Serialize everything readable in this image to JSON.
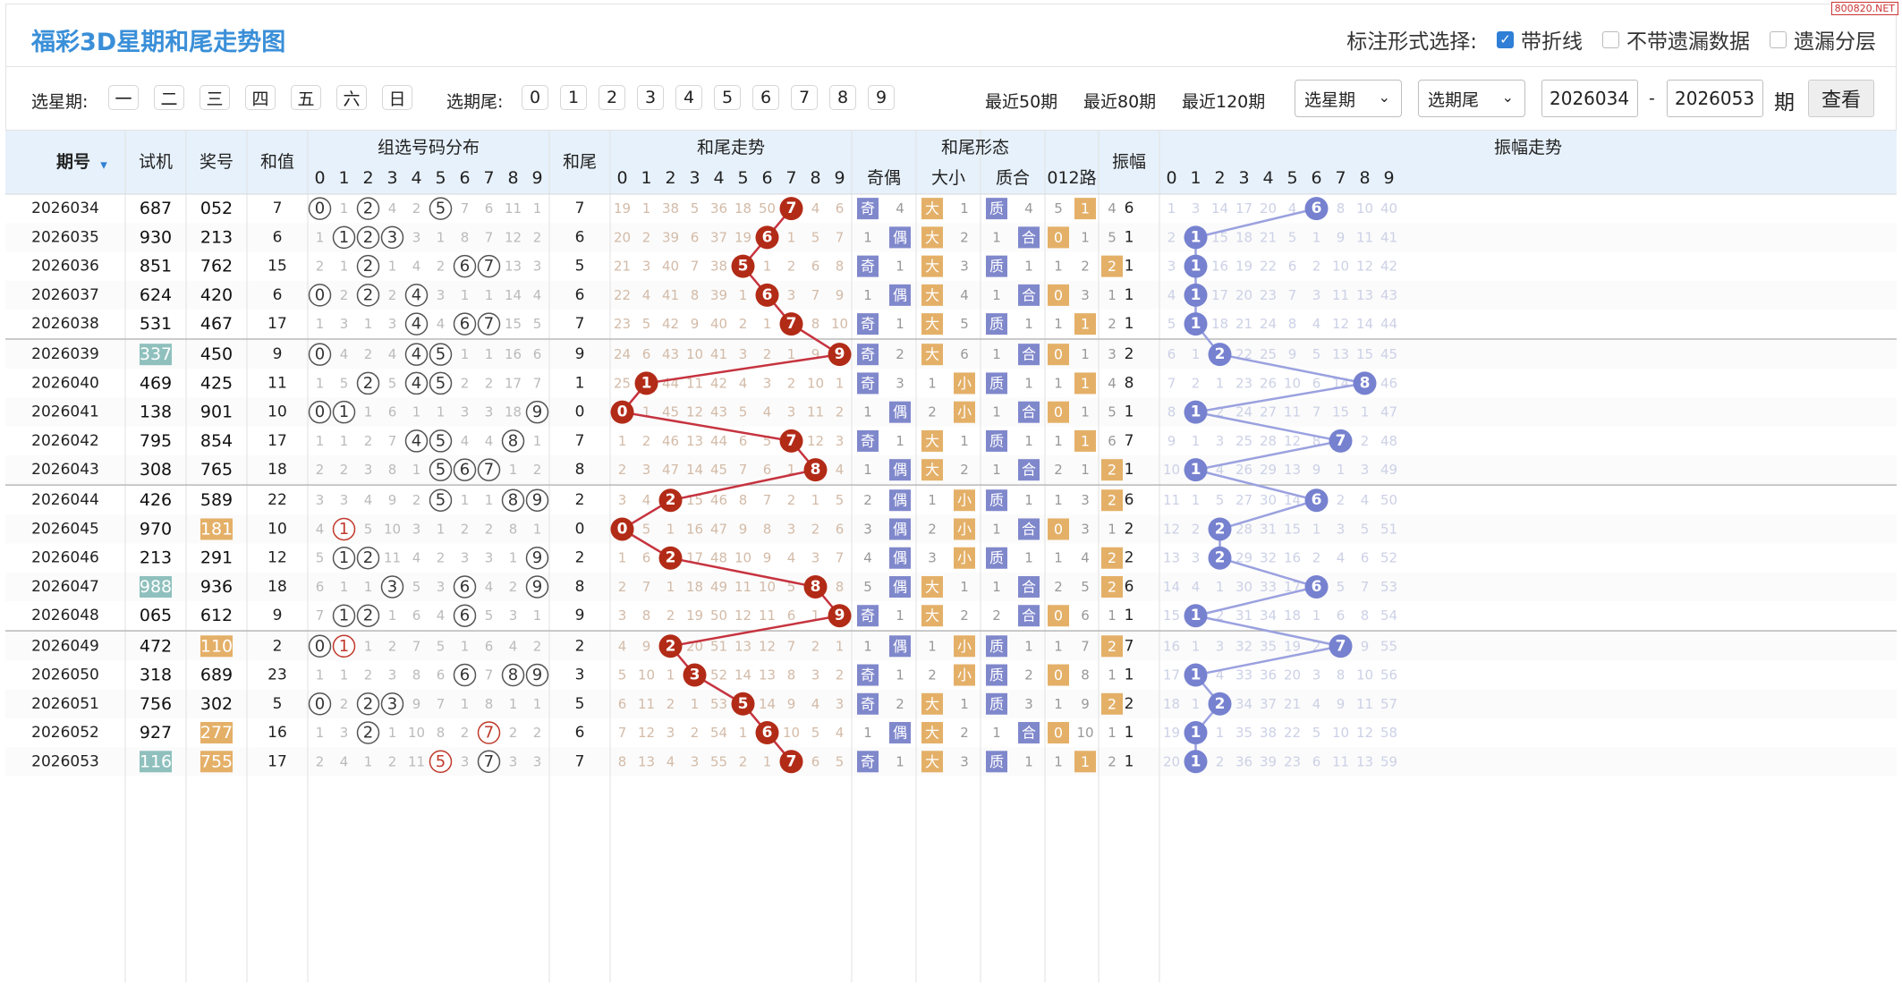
{
  "title": "福彩3D星期和尾走势图",
  "watermark": "800820.NET",
  "mark_options": {
    "label": "标注形式选择:",
    "items": [
      {
        "label": "带折线",
        "checked": true
      },
      {
        "label": "不带遗漏数据",
        "checked": false
      },
      {
        "label": "遗漏分层",
        "checked": false
      }
    ]
  },
  "filters": {
    "weekday_label": "选星期:",
    "weekdays": [
      "一",
      "二",
      "三",
      "四",
      "五",
      "六",
      "日"
    ],
    "tail_label": "选期尾:",
    "tails": [
      "0",
      "1",
      "2",
      "3",
      "4",
      "5",
      "6",
      "7",
      "8",
      "9"
    ],
    "recent": [
      "最近50期",
      "最近80期",
      "最近120期"
    ],
    "select_week": "选星期",
    "select_tail": "选期尾",
    "caret": "⌄",
    "from": "2026034",
    "sep": "-",
    "to": "2026053",
    "period_suffix": "期",
    "query_button": "查看"
  },
  "headers": {
    "issue": "期号",
    "arrow": "▾",
    "trial": "试机",
    "draw": "奖号",
    "sum": "和值",
    "dist": "组选号码分布",
    "tail": "和尾",
    "tail_trend": "和尾走势",
    "form": "和尾形态",
    "odd_even": "奇偶",
    "big_small": "大小",
    "prime_comp": "质合",
    "road": "012路",
    "amp": "振幅",
    "amp_trend": "振幅走势",
    "digits": [
      "0",
      "1",
      "2",
      "3",
      "4",
      "5",
      "6",
      "7",
      "8",
      "9"
    ]
  },
  "labels": {
    "odd": "奇",
    "even": "偶",
    "big": "大",
    "small": "小",
    "prime": "质",
    "comp": "合"
  },
  "colors": {
    "title": "#3a8fd8",
    "trend_ball": "#b22b17",
    "trend_line": "#c6333f",
    "amp_ball": "#7681cf",
    "amp_line": "#9aa1df",
    "odd_badge": "#8088cc",
    "big_badge": "#e4b068",
    "road_badge": "#e4b068",
    "trial_hl": "#8fc0bd",
    "draw_hl": "#e4b068",
    "header_bg": "#e7f1fb",
    "dist_circle": "#555",
    "dist_red": "#c0392b"
  },
  "rows": [
    {
      "issue": "2026034",
      "trial": "687",
      "draw": "052",
      "sum": "7",
      "tail": "7",
      "amp": "6",
      "dist": [
        "0",
        "1",
        "2",
        "4",
        "2",
        "5",
        "7",
        "6",
        "11",
        "1"
      ],
      "tt": [
        "19",
        "1",
        "38",
        "5",
        "36",
        "18",
        "50",
        "7",
        "4",
        "6"
      ],
      "oe": [
        "奇",
        "4"
      ],
      "bs": [
        "大",
        "1"
      ],
      "pc": [
        "质",
        "4"
      ],
      "road": [
        "5",
        "1",
        "4"
      ],
      "at": [
        "1",
        "3",
        "14",
        "17",
        "20",
        "4",
        "6",
        "8",
        "10",
        "40"
      ]
    },
    {
      "issue": "2026035",
      "trial": "930",
      "draw": "213",
      "sum": "6",
      "tail": "6",
      "amp": "1",
      "dist": [
        "1",
        "1",
        "2",
        "3",
        "3",
        "1",
        "8",
        "7",
        "12",
        "2"
      ],
      "tt": [
        "20",
        "2",
        "39",
        "6",
        "37",
        "19",
        "6",
        "1",
        "5",
        "7"
      ],
      "oe": [
        "1",
        "偶"
      ],
      "bs": [
        "大",
        "2"
      ],
      "pc": [
        "1",
        "合"
      ],
      "road": [
        "0",
        "1",
        "5"
      ],
      "at": [
        "2",
        "1",
        "15",
        "18",
        "21",
        "5",
        "1",
        "9",
        "11",
        "41"
      ]
    },
    {
      "issue": "2026036",
      "trial": "851",
      "draw": "762",
      "sum": "15",
      "tail": "5",
      "amp": "1",
      "dist": [
        "2",
        "1",
        "2",
        "1",
        "4",
        "2",
        "6",
        "7",
        "13",
        "3"
      ],
      "tt": [
        "21",
        "3",
        "40",
        "7",
        "38",
        "5",
        "1",
        "2",
        "6",
        "8"
      ],
      "oe": [
        "奇",
        "1"
      ],
      "bs": [
        "大",
        "3"
      ],
      "pc": [
        "质",
        "1"
      ],
      "road": [
        "1",
        "2",
        "2"
      ],
      "at": [
        "3",
        "1",
        "16",
        "19",
        "22",
        "6",
        "2",
        "10",
        "12",
        "42"
      ]
    },
    {
      "issue": "2026037",
      "trial": "624",
      "draw": "420",
      "sum": "6",
      "tail": "6",
      "amp": "1",
      "dist": [
        "0",
        "2",
        "2",
        "2",
        "4",
        "3",
        "1",
        "1",
        "14",
        "4"
      ],
      "tt": [
        "22",
        "4",
        "41",
        "8",
        "39",
        "1",
        "6",
        "3",
        "7",
        "9"
      ],
      "oe": [
        "1",
        "偶"
      ],
      "bs": [
        "大",
        "4"
      ],
      "pc": [
        "1",
        "合"
      ],
      "road": [
        "0",
        "3",
        "1"
      ],
      "at": [
        "4",
        "1",
        "17",
        "20",
        "23",
        "7",
        "3",
        "11",
        "13",
        "43"
      ]
    },
    {
      "issue": "2026038",
      "trial": "531",
      "draw": "467",
      "sum": "17",
      "tail": "7",
      "amp": "1",
      "dist": [
        "1",
        "3",
        "1",
        "3",
        "4",
        "4",
        "6",
        "7",
        "15",
        "5"
      ],
      "tt": [
        "23",
        "5",
        "42",
        "9",
        "40",
        "2",
        "1",
        "7",
        "8",
        "10"
      ],
      "oe": [
        "奇",
        "1"
      ],
      "bs": [
        "大",
        "5"
      ],
      "pc": [
        "质",
        "1"
      ],
      "road": [
        "1",
        "1",
        "2"
      ],
      "at": [
        "5",
        "1",
        "18",
        "21",
        "24",
        "8",
        "4",
        "12",
        "14",
        "44"
      ]
    },
    {
      "issue": "2026039",
      "trial": "337",
      "draw": "450",
      "sum": "9",
      "tail": "9",
      "amp": "2",
      "dist": [
        "0",
        "4",
        "2",
        "4",
        "4",
        "5",
        "1",
        "1",
        "16",
        "6"
      ],
      "tt": [
        "24",
        "6",
        "43",
        "10",
        "41",
        "3",
        "2",
        "1",
        "9",
        "9"
      ],
      "oe": [
        "奇",
        "2"
      ],
      "bs": [
        "大",
        "6"
      ],
      "pc": [
        "1",
        "合"
      ],
      "road": [
        "0",
        "1",
        "3"
      ],
      "at": [
        "6",
        "1",
        "2",
        "22",
        "25",
        "9",
        "5",
        "13",
        "15",
        "45"
      ]
    },
    {
      "issue": "2026040",
      "trial": "469",
      "draw": "425",
      "sum": "11",
      "tail": "1",
      "amp": "8",
      "dist": [
        "1",
        "5",
        "2",
        "5",
        "4",
        "5",
        "2",
        "2",
        "17",
        "7"
      ],
      "tt": [
        "25",
        "1",
        "44",
        "11",
        "42",
        "4",
        "3",
        "2",
        "10",
        "1"
      ],
      "oe": [
        "奇",
        "3"
      ],
      "bs": [
        "1",
        "小"
      ],
      "pc": [
        "质",
        "1"
      ],
      "road": [
        "1",
        "1",
        "4"
      ],
      "at": [
        "7",
        "2",
        "1",
        "23",
        "26",
        "10",
        "6",
        "14",
        "8",
        "46"
      ]
    },
    {
      "issue": "2026041",
      "trial": "138",
      "draw": "901",
      "sum": "10",
      "tail": "0",
      "amp": "1",
      "dist": [
        "0",
        "1",
        "1",
        "6",
        "1",
        "1",
        "3",
        "3",
        "18",
        "9"
      ],
      "tt": [
        "0",
        "1",
        "45",
        "12",
        "43",
        "5",
        "4",
        "3",
        "11",
        "2"
      ],
      "oe": [
        "1",
        "偶"
      ],
      "bs": [
        "2",
        "小"
      ],
      "pc": [
        "1",
        "合"
      ],
      "road": [
        "0",
        "1",
        "5"
      ],
      "at": [
        "8",
        "1",
        "2",
        "24",
        "27",
        "11",
        "7",
        "15",
        "1",
        "47"
      ]
    },
    {
      "issue": "2026042",
      "trial": "795",
      "draw": "854",
      "sum": "17",
      "tail": "7",
      "amp": "7",
      "dist": [
        "1",
        "1",
        "2",
        "7",
        "4",
        "5",
        "4",
        "4",
        "8",
        "1"
      ],
      "tt": [
        "1",
        "2",
        "46",
        "13",
        "44",
        "6",
        "5",
        "7",
        "12",
        "3"
      ],
      "oe": [
        "奇",
        "1"
      ],
      "bs": [
        "大",
        "1"
      ],
      "pc": [
        "质",
        "1"
      ],
      "road": [
        "1",
        "1",
        "6"
      ],
      "at": [
        "9",
        "1",
        "3",
        "25",
        "28",
        "12",
        "8",
        "7",
        "2",
        "48"
      ]
    },
    {
      "issue": "2026043",
      "trial": "308",
      "draw": "765",
      "sum": "18",
      "tail": "8",
      "amp": "1",
      "dist": [
        "2",
        "2",
        "3",
        "8",
        "1",
        "5",
        "6",
        "7",
        "1",
        "2"
      ],
      "tt": [
        "2",
        "3",
        "47",
        "14",
        "45",
        "7",
        "6",
        "1",
        "8",
        "4"
      ],
      "oe": [
        "1",
        "偶"
      ],
      "bs": [
        "大",
        "2"
      ],
      "pc": [
        "1",
        "合"
      ],
      "road": [
        "2",
        "1",
        "2"
      ],
      "at": [
        "10",
        "1",
        "4",
        "26",
        "29",
        "13",
        "9",
        "1",
        "3",
        "49"
      ]
    },
    {
      "issue": "2026044",
      "trial": "426",
      "draw": "589",
      "sum": "22",
      "tail": "2",
      "amp": "6",
      "dist": [
        "3",
        "3",
        "4",
        "9",
        "2",
        "5",
        "1",
        "1",
        "8",
        "9"
      ],
      "tt": [
        "3",
        "4",
        "2",
        "15",
        "46",
        "8",
        "7",
        "2",
        "1",
        "5"
      ],
      "oe": [
        "2",
        "偶"
      ],
      "bs": [
        "1",
        "小"
      ],
      "pc": [
        "质",
        "1"
      ],
      "road": [
        "1",
        "3",
        "2"
      ],
      "at": [
        "11",
        "1",
        "5",
        "27",
        "30",
        "14",
        "6",
        "2",
        "4",
        "50"
      ]
    },
    {
      "issue": "2026045",
      "trial": "970",
      "draw": "181",
      "sum": "10",
      "tail": "0",
      "amp": "2",
      "dist": [
        "4",
        "1",
        "5",
        "10",
        "3",
        "1",
        "2",
        "2",
        "8",
        "1"
      ],
      "tt": [
        "0",
        "5",
        "1",
        "16",
        "47",
        "9",
        "8",
        "3",
        "2",
        "6"
      ],
      "oe": [
        "3",
        "偶"
      ],
      "bs": [
        "2",
        "小"
      ],
      "pc": [
        "1",
        "合"
      ],
      "road": [
        "0",
        "3",
        "1"
      ],
      "at": [
        "12",
        "2",
        "2",
        "28",
        "31",
        "15",
        "1",
        "3",
        "5",
        "51"
      ]
    },
    {
      "issue": "2026046",
      "trial": "213",
      "draw": "291",
      "sum": "12",
      "tail": "2",
      "amp": "2",
      "dist": [
        "5",
        "1",
        "2",
        "11",
        "4",
        "2",
        "3",
        "3",
        "1",
        "9"
      ],
      "tt": [
        "1",
        "6",
        "2",
        "17",
        "48",
        "10",
        "9",
        "4",
        "3",
        "7"
      ],
      "oe": [
        "4",
        "偶"
      ],
      "bs": [
        "3",
        "小"
      ],
      "pc": [
        "质",
        "1"
      ],
      "road": [
        "1",
        "4",
        "2"
      ],
      "at": [
        "13",
        "3",
        "2",
        "29",
        "32",
        "16",
        "2",
        "4",
        "6",
        "52"
      ]
    },
    {
      "issue": "2026047",
      "trial": "988",
      "draw": "936",
      "sum": "18",
      "tail": "8",
      "amp": "6",
      "dist": [
        "6",
        "1",
        "1",
        "3",
        "5",
        "3",
        "6",
        "4",
        "2",
        "9"
      ],
      "tt": [
        "2",
        "7",
        "1",
        "18",
        "49",
        "11",
        "10",
        "5",
        "8",
        "8"
      ],
      "oe": [
        "5",
        "偶"
      ],
      "bs": [
        "大",
        "1"
      ],
      "pc": [
        "1",
        "合"
      ],
      "road": [
        "2",
        "5",
        "2"
      ],
      "at": [
        "14",
        "4",
        "1",
        "30",
        "33",
        "17",
        "6",
        "5",
        "7",
        "53"
      ]
    },
    {
      "issue": "2026048",
      "trial": "065",
      "draw": "612",
      "sum": "9",
      "tail": "9",
      "amp": "1",
      "dist": [
        "7",
        "1",
        "2",
        "1",
        "6",
        "4",
        "6",
        "5",
        "3",
        "1"
      ],
      "tt": [
        "3",
        "8",
        "2",
        "19",
        "50",
        "12",
        "11",
        "6",
        "1",
        "9"
      ],
      "oe": [
        "奇",
        "1"
      ],
      "bs": [
        "大",
        "2"
      ],
      "pc": [
        "2",
        "合"
      ],
      "road": [
        "0",
        "6",
        "1"
      ],
      "at": [
        "15",
        "1",
        "2",
        "31",
        "34",
        "18",
        "1",
        "6",
        "8",
        "54"
      ]
    },
    {
      "issue": "2026049",
      "trial": "472",
      "draw": "110",
      "sum": "2",
      "tail": "2",
      "amp": "7",
      "dist": [
        "0",
        "1",
        "1",
        "2",
        "7",
        "5",
        "1",
        "6",
        "4",
        "2"
      ],
      "tt": [
        "4",
        "9",
        "2",
        "20",
        "51",
        "13",
        "12",
        "7",
        "2",
        "1"
      ],
      "oe": [
        "1",
        "偶"
      ],
      "bs": [
        "1",
        "小"
      ],
      "pc": [
        "质",
        "1"
      ],
      "road": [
        "1",
        "7",
        "2"
      ],
      "at": [
        "16",
        "1",
        "3",
        "32",
        "35",
        "19",
        "2",
        "7",
        "9",
        "55"
      ]
    },
    {
      "issue": "2026050",
      "trial": "318",
      "draw": "689",
      "sum": "23",
      "tail": "3",
      "amp": "1",
      "dist": [
        "1",
        "1",
        "2",
        "3",
        "8",
        "6",
        "6",
        "7",
        "8",
        "9"
      ],
      "tt": [
        "5",
        "10",
        "1",
        "3",
        "52",
        "14",
        "13",
        "8",
        "3",
        "2"
      ],
      "oe": [
        "奇",
        "1"
      ],
      "bs": [
        "2",
        "小"
      ],
      "pc": [
        "质",
        "2"
      ],
      "road": [
        "0",
        "8",
        "1"
      ],
      "at": [
        "17",
        "1",
        "4",
        "33",
        "36",
        "20",
        "3",
        "8",
        "10",
        "56"
      ]
    },
    {
      "issue": "2026051",
      "trial": "756",
      "draw": "302",
      "sum": "5",
      "tail": "5",
      "amp": "2",
      "dist": [
        "0",
        "2",
        "2",
        "3",
        "9",
        "7",
        "1",
        "8",
        "1",
        "1"
      ],
      "tt": [
        "6",
        "11",
        "2",
        "1",
        "53",
        "5",
        "14",
        "9",
        "4",
        "3"
      ],
      "oe": [
        "奇",
        "2"
      ],
      "bs": [
        "大",
        "1"
      ],
      "pc": [
        "质",
        "3"
      ],
      "road": [
        "1",
        "9",
        "2"
      ],
      "at": [
        "18",
        "1",
        "2",
        "34",
        "37",
        "21",
        "4",
        "9",
        "11",
        "57"
      ]
    },
    {
      "issue": "2026052",
      "trial": "927",
      "draw": "277",
      "sum": "16",
      "tail": "6",
      "amp": "1",
      "dist": [
        "1",
        "3",
        "2",
        "1",
        "10",
        "8",
        "2",
        "7",
        "2",
        "2"
      ],
      "tt": [
        "7",
        "12",
        "3",
        "2",
        "54",
        "1",
        "6",
        "10",
        "5",
        "4"
      ],
      "oe": [
        "1",
        "偶"
      ],
      "bs": [
        "大",
        "2"
      ],
      "pc": [
        "1",
        "合"
      ],
      "road": [
        "0",
        "10",
        "1"
      ],
      "at": [
        "19",
        "1",
        "1",
        "35",
        "38",
        "22",
        "5",
        "10",
        "12",
        "58"
      ]
    },
    {
      "issue": "2026053",
      "trial": "116",
      "draw": "755",
      "sum": "17",
      "tail": "7",
      "amp": "1",
      "dist": [
        "2",
        "4",
        "1",
        "2",
        "11",
        "5",
        "3",
        "7",
        "3",
        "3"
      ],
      "tt": [
        "8",
        "13",
        "4",
        "3",
        "55",
        "2",
        "1",
        "7",
        "6",
        "5"
      ],
      "oe": [
        "奇",
        "1"
      ],
      "bs": [
        "大",
        "3"
      ],
      "pc": [
        "质",
        "1"
      ],
      "road": [
        "1",
        "1",
        "2"
      ],
      "at": [
        "20",
        "1",
        "2",
        "36",
        "39",
        "23",
        "6",
        "11",
        "13",
        "59"
      ]
    }
  ],
  "dist_hits": [
    [
      0,
      2,
      5
    ],
    [
      1,
      2,
      3
    ],
    [
      2,
      6,
      7
    ],
    [
      0,
      2,
      4
    ],
    [
      4,
      6,
      7
    ],
    [
      0,
      4,
      5
    ],
    [
      2,
      4,
      5
    ],
    [
      0,
      1,
      9
    ],
    [
      4,
      5,
      8
    ],
    [
      5,
      6,
      7
    ],
    [
      5,
      8,
      9
    ],
    [
      1
    ],
    [
      1,
      2,
      9
    ],
    [
      3,
      6,
      9
    ],
    [
      1,
      2,
      6
    ],
    [
      0,
      1
    ],
    [
      6,
      8,
      9
    ],
    [
      0,
      2,
      3
    ],
    [
      2,
      7
    ],
    [
      5,
      7
    ]
  ],
  "dist_red": [
    [],
    [],
    [],
    [],
    [],
    [],
    [],
    [],
    [],
    [],
    [],
    [
      1
    ],
    [],
    [],
    [],
    [
      1
    ],
    [],
    [],
    [
      7
    ],
    [
      5
    ]
  ],
  "trial_hl": [
    5,
    13,
    19
  ],
  "draw_hl": [
    11,
    15,
    18,
    19
  ],
  "road_hit": [
    1,
    0,
    2,
    0,
    1,
    0,
    1,
    0,
    1,
    2,
    2,
    0,
    2,
    2,
    0,
    2,
    0,
    2,
    0,
    1
  ]
}
